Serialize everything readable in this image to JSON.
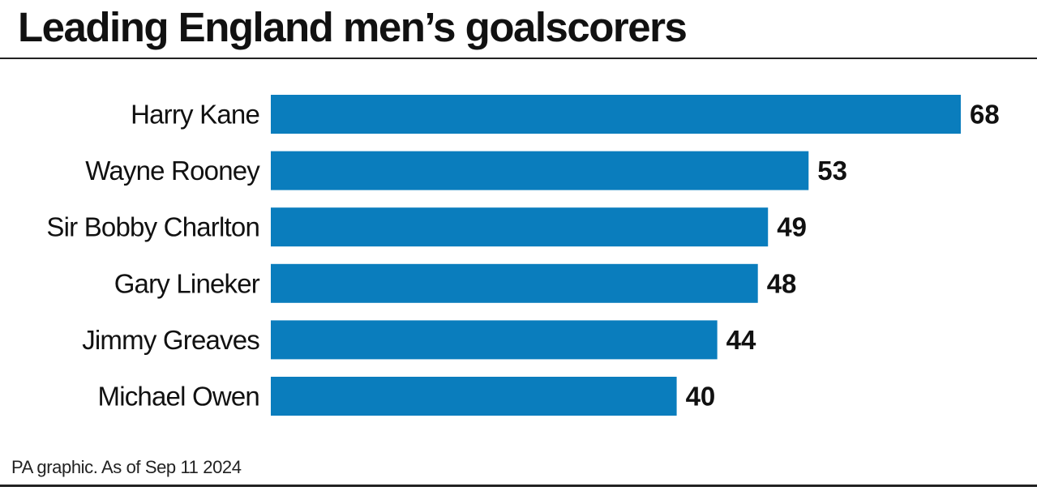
{
  "title": "Leading England men’s goalscorers",
  "footer": "PA graphic. As of Sep 11 2024",
  "colors": {
    "bar": "#0a7dbd",
    "text": "#111111",
    "rule": "#222222"
  },
  "chart_data": {
    "type": "bar",
    "orientation": "horizontal",
    "title": "Leading England men’s goalscorers",
    "xlabel": "",
    "ylabel": "",
    "grid": false,
    "legend": "none",
    "xlim": [
      0,
      68
    ],
    "categories": [
      "Harry Kane",
      "Wayne Rooney",
      "Sir Bobby Charlton",
      "Gary Lineker",
      "Jimmy Greaves",
      "Michael Owen"
    ],
    "values": [
      68,
      53,
      49,
      48,
      44,
      40
    ],
    "data_labels": [
      "68",
      "53",
      "49",
      "48",
      "44",
      "40"
    ]
  }
}
